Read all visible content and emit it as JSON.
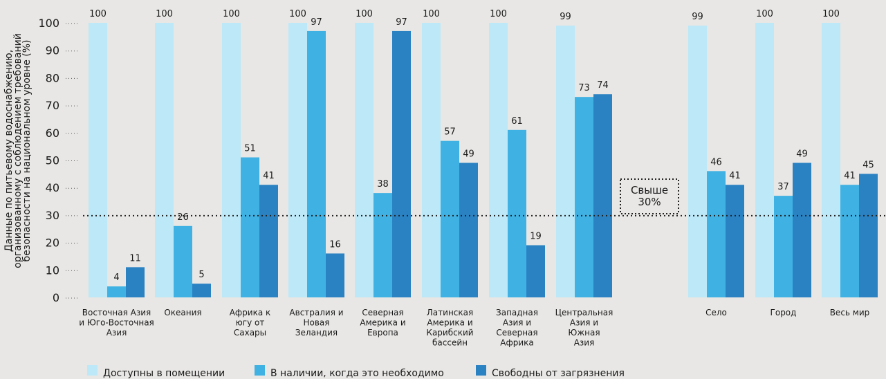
{
  "chart_data": {
    "type": "bar",
    "ylabel": "Данные по питьевому водоснабжению, организованному с соблюдением требований безопасности на национальном уровне (%)",
    "ylim": [
      0,
      100
    ],
    "yticks": [
      0,
      10,
      20,
      30,
      40,
      50,
      60,
      70,
      80,
      90,
      100
    ],
    "grid": false,
    "legend_position": "bottom",
    "categories": [
      "Восточная Азия и Юго-Восточная Азия",
      "Океания",
      "Африка к югу от Сахары",
      "Австралия и Новая Зеландия",
      "Северная Америка и Европа",
      "Латинская Америка и Карибский бассейн",
      "Западная Азия и Северная Африка",
      "Центральная Азия и Южная Азия",
      "Село",
      "Город",
      "Весь мир"
    ],
    "category_lines": [
      [
        "Восточная Азия",
        "и Юго-Восточная",
        "Азия"
      ],
      [
        "Океания"
      ],
      [
        "Африка к",
        "югу от",
        "Сахары"
      ],
      [
        "Австралия и",
        "Новая",
        "Зеландия"
      ],
      [
        "Северная",
        "Америка и",
        "Европа"
      ],
      [
        "Латинская",
        "Америка и",
        "Карибский",
        "бассейн"
      ],
      [
        "Западная",
        "Азия и",
        "Северная",
        "Африка"
      ],
      [
        "Центральная",
        "Азия и",
        "Южная",
        "Азия"
      ],
      [
        "Село"
      ],
      [
        "Город"
      ],
      [
        "Весь мир"
      ]
    ],
    "series": [
      {
        "name": "Доступны в помещении",
        "color": "#bde8f7",
        "values": [
          100,
          100,
          100,
          100,
          100,
          100,
          100,
          99,
          99,
          100,
          100
        ]
      },
      {
        "name": "В наличии, когда это необходимо",
        "color": "#3fb1e3",
        "values": [
          4,
          26,
          51,
          97,
          38,
          57,
          61,
          73,
          46,
          37,
          41
        ]
      },
      {
        "name": "Свободны от загрязнения",
        "color": "#2a82c3",
        "values": [
          11,
          5,
          41,
          16,
          97,
          49,
          19,
          74,
          41,
          49,
          45
        ]
      }
    ],
    "reference_line": {
      "value": 30,
      "label": [
        "Свыше",
        "30%"
      ]
    }
  }
}
